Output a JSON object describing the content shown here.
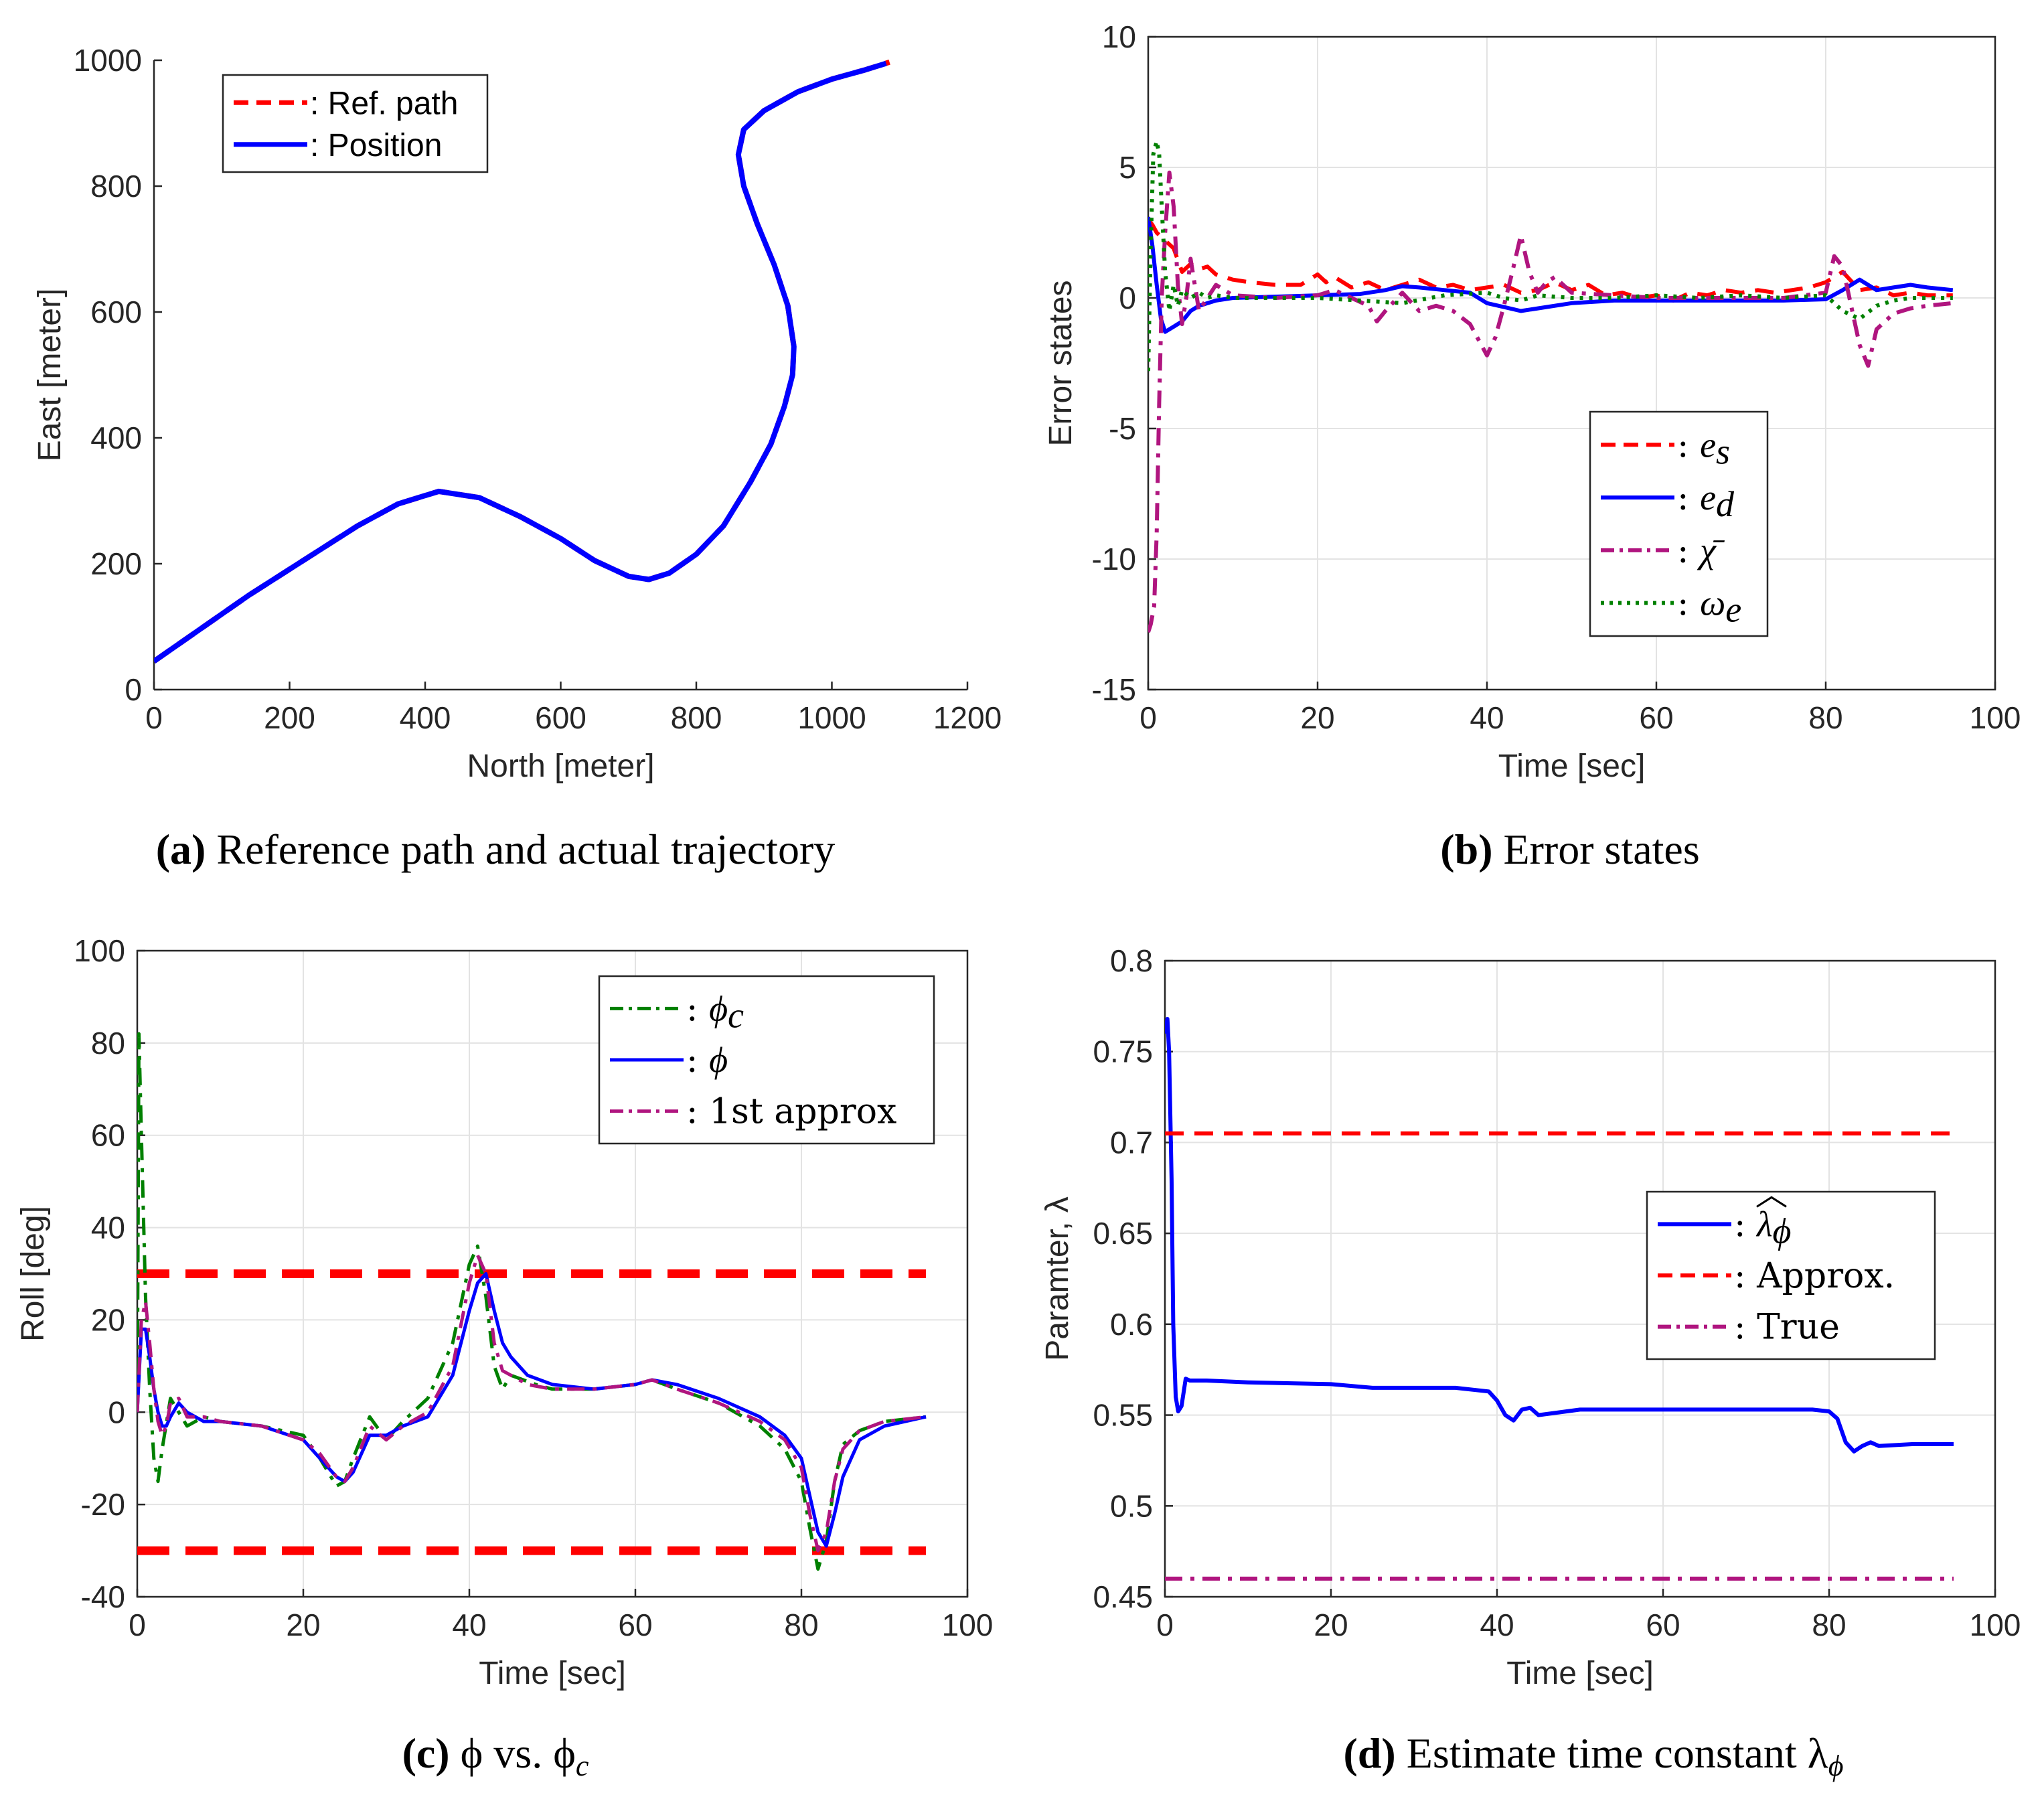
{
  "colors": {
    "red": "#ff0000",
    "blue": "#0000ff",
    "green": "#008000",
    "magenta": "#b0157f"
  },
  "chart_data": [
    {
      "id": "a",
      "type": "line",
      "caption_letter": "(a)",
      "caption_text": "Reference path and actual trajectory",
      "xlabel": "North [meter]",
      "ylabel": "East [meter]",
      "xlim": [
        0,
        1200
      ],
      "ylim": [
        0,
        1000
      ],
      "xticks": [
        0,
        200,
        400,
        600,
        800,
        1000,
        1200
      ],
      "yticks": [
        0,
        200,
        400,
        600,
        800,
        1000
      ],
      "grid": false,
      "legend_position": "top-left",
      "series": [
        {
          "name": ": Ref. path",
          "color": "red",
          "style": "dashed",
          "x": [
            0,
            60,
            140,
            220,
            300,
            360,
            420,
            480,
            540,
            600,
            650,
            700,
            730,
            760,
            800,
            840,
            880,
            910,
            930,
            942,
            944,
            935,
            915,
            890,
            870,
            862,
            870,
            900,
            950,
            1000,
            1050,
            1085
          ],
          "y": [
            45,
            90,
            150,
            205,
            260,
            295,
            315,
            305,
            275,
            240,
            205,
            180,
            175,
            185,
            215,
            260,
            330,
            390,
            450,
            500,
            545,
            610,
            675,
            740,
            800,
            850,
            890,
            920,
            950,
            970,
            985,
            997
          ]
        },
        {
          "name": ": Position",
          "color": "blue",
          "style": "solid",
          "x": [
            0,
            60,
            140,
            220,
            300,
            360,
            420,
            480,
            540,
            600,
            650,
            700,
            730,
            760,
            800,
            840,
            880,
            910,
            930,
            942,
            944,
            935,
            915,
            890,
            870,
            862,
            870,
            900,
            950,
            1000,
            1050,
            1080
          ],
          "y": [
            45,
            90,
            150,
            205,
            260,
            295,
            315,
            305,
            275,
            240,
            205,
            180,
            175,
            185,
            215,
            260,
            330,
            390,
            450,
            500,
            545,
            610,
            675,
            740,
            800,
            850,
            890,
            920,
            950,
            970,
            985,
            995
          ]
        }
      ]
    },
    {
      "id": "b",
      "type": "line",
      "caption_letter": "(b)",
      "caption_text": "Error states",
      "xlabel": "Time [sec]",
      "ylabel": "Error states",
      "xlim": [
        0,
        100
      ],
      "ylim": [
        -15,
        10
      ],
      "xticks": [
        0,
        20,
        40,
        60,
        80,
        100
      ],
      "yticks": [
        -15,
        -10,
        -5,
        0,
        5,
        10
      ],
      "grid": true,
      "legend_position": "bottom-right",
      "series": [
        {
          "name": "e_s",
          "label_base": "e",
          "label_sub": "s",
          "color": "red",
          "style": "dashed",
          "x": [
            0,
            0.5,
            1,
            2,
            3,
            4,
            5,
            6,
            7,
            8,
            10,
            12,
            15,
            18,
            20,
            21,
            22,
            24,
            26,
            28,
            30,
            32,
            34,
            36,
            38,
            40,
            42,
            44,
            46,
            48,
            50,
            52,
            54,
            56,
            58,
            60,
            62,
            64,
            66,
            68,
            70,
            72,
            74,
            76,
            78,
            80,
            82,
            84,
            86,
            88,
            90,
            92,
            95
          ],
          "y": [
            3.0,
            2.8,
            2.5,
            2.2,
            1.9,
            1.0,
            1.3,
            1.1,
            1.2,
            0.9,
            0.7,
            0.6,
            0.5,
            0.5,
            0.9,
            0.6,
            0.8,
            0.4,
            0.6,
            0.3,
            0.5,
            0.7,
            0.4,
            0.5,
            0.3,
            0.4,
            0.5,
            0.2,
            0.3,
            0.6,
            0.3,
            0.5,
            0.1,
            0.2,
            0.0,
            0.1,
            -0.1,
            0.2,
            0.1,
            0.3,
            0.2,
            0.3,
            0.2,
            0.3,
            0.4,
            0.6,
            1.0,
            0.3,
            0.4,
            0.1,
            0.2,
            0.1,
            0.1
          ]
        },
        {
          "name": "e_d",
          "label_base": "e",
          "label_sub": "d",
          "color": "blue",
          "style": "solid",
          "x": [
            0,
            0.5,
            1,
            1.5,
            2,
            3,
            4,
            5,
            6,
            8,
            10,
            15,
            20,
            25,
            28,
            30,
            32,
            35,
            38,
            40,
            42,
            44,
            46,
            50,
            55,
            60,
            65,
            70,
            75,
            80,
            82,
            84,
            86,
            88,
            90,
            92,
            95
          ],
          "y": [
            3.1,
            2.0,
            0.5,
            -0.8,
            -1.3,
            -1.1,
            -0.9,
            -0.5,
            -0.3,
            -0.1,
            0.0,
            0.05,
            0.1,
            0.15,
            0.3,
            0.45,
            0.4,
            0.3,
            0.2,
            -0.2,
            -0.35,
            -0.5,
            -0.4,
            -0.2,
            -0.1,
            -0.1,
            -0.1,
            -0.1,
            -0.1,
            -0.05,
            0.3,
            0.7,
            0.3,
            0.4,
            0.5,
            0.4,
            0.3
          ]
        },
        {
          "name": "chi_bar",
          "label_base": "χ̄",
          "label_sub": "",
          "color": "magenta",
          "style": "dashdot",
          "x": [
            0,
            0.3,
            0.7,
            1,
            1.3,
            1.6,
            2,
            2.5,
            3,
            3.5,
            4,
            4.5,
            5,
            5.5,
            6,
            7,
            8,
            10,
            15,
            20,
            22,
            24,
            26,
            27,
            28,
            30,
            32,
            34,
            36,
            38,
            40,
            41,
            42,
            43,
            44,
            45,
            46,
            47,
            48,
            50,
            55,
            60,
            65,
            70,
            75,
            80,
            81,
            82,
            83,
            84,
            85,
            86,
            88,
            90,
            92,
            95
          ],
          "y": [
            -12.8,
            -12.5,
            -11.8,
            -9.0,
            -4.0,
            0.0,
            2.5,
            4.8,
            3.5,
            0.5,
            -1.0,
            0.0,
            1.5,
            0.5,
            -0.5,
            0.0,
            0.5,
            0.1,
            0.0,
            0.1,
            0.3,
            0.0,
            -0.3,
            -0.9,
            -0.5,
            0.2,
            -0.5,
            -0.3,
            -0.5,
            -1.0,
            -2.2,
            -1.5,
            -0.3,
            1.0,
            2.4,
            1.0,
            0.2,
            0.6,
            0.8,
            0.2,
            0.1,
            0.0,
            0.0,
            0.0,
            0.0,
            0.2,
            1.6,
            1.2,
            -0.3,
            -1.8,
            -2.6,
            -1.2,
            -0.6,
            -0.4,
            -0.3,
            -0.2
          ]
        },
        {
          "name": "omega_e",
          "label_base": "ω",
          "label_sub": "e",
          "color": "green",
          "style": "dotted",
          "x": [
            0,
            0.3,
            0.6,
            1,
            1.3,
            1.6,
            2,
            2.5,
            3,
            3.5,
            4,
            5,
            6,
            7,
            8,
            10,
            15,
            20,
            25,
            30,
            35,
            40,
            42,
            44,
            46,
            50,
            55,
            60,
            65,
            70,
            75,
            80,
            82,
            84,
            86,
            88,
            90,
            92,
            95
          ],
          "y": [
            -2.8,
            2.0,
            5.5,
            6.0,
            5.5,
            3.5,
            1.0,
            -0.5,
            0.5,
            -0.3,
            0.3,
            0.0,
            0.2,
            0.0,
            0.1,
            0.0,
            0.0,
            0.0,
            -0.1,
            -0.2,
            0.1,
            0.2,
            0.0,
            -0.1,
            0.1,
            0.0,
            0.0,
            0.1,
            0.0,
            0.1,
            0.0,
            0.1,
            -0.5,
            -0.8,
            -0.3,
            -0.1,
            0.0,
            0.0,
            0.0
          ]
        }
      ]
    },
    {
      "id": "c",
      "type": "line",
      "caption_letter": "(c)",
      "caption_text": "ϕ vs. ϕ",
      "caption_sub": "c",
      "xlabel": "Time [sec]",
      "ylabel": "Roll [deg]",
      "xlim": [
        0,
        100
      ],
      "ylim": [
        -40,
        100
      ],
      "xticks": [
        0,
        20,
        40,
        60,
        80,
        100
      ],
      "yticks": [
        -40,
        -20,
        0,
        20,
        40,
        60,
        80,
        100
      ],
      "grid": true,
      "legend_position": "top-right",
      "hlines": [
        {
          "y": 30,
          "x": [
            0,
            95
          ],
          "color": "red",
          "style": "thickdash"
        },
        {
          "y": -30,
          "x": [
            0,
            95
          ],
          "color": "red",
          "style": "thickdash"
        }
      ],
      "series": [
        {
          "name": "phi_c",
          "label_base": "ϕ",
          "label_sub": "c",
          "color": "green",
          "style": "dashdot",
          "x": [
            0,
            0.2,
            0.5,
            1,
            1.5,
            2,
            2.5,
            3,
            4,
            5,
            6,
            8,
            10,
            15,
            20,
            22,
            24,
            25,
            26,
            28,
            30,
            32,
            35,
            38,
            40,
            41,
            42,
            43,
            44,
            45,
            48,
            50,
            55,
            60,
            62,
            65,
            70,
            75,
            78,
            80,
            81,
            82,
            83,
            84,
            85,
            87,
            90,
            95
          ],
          "y": [
            0,
            82,
            60,
            25,
            5,
            -10,
            -15,
            -8,
            3,
            0,
            -3,
            -1,
            -2,
            -3,
            -5,
            -10,
            -16,
            -15,
            -10,
            -1,
            -6,
            -2,
            3,
            15,
            32,
            36,
            25,
            10,
            5,
            8,
            6,
            5,
            5,
            6,
            7,
            5,
            2,
            -3,
            -8,
            -15,
            -25,
            -34,
            -28,
            -15,
            -7,
            -4,
            -2,
            -1
          ]
        },
        {
          "name": "phi",
          "label_base": "ϕ",
          "label_sub": "",
          "color": "blue",
          "style": "solid",
          "x": [
            0,
            0.5,
            1,
            1.5,
            2,
            2.5,
            3,
            3.5,
            4,
            5,
            6,
            8,
            10,
            15,
            20,
            22,
            24,
            25,
            26,
            28,
            30,
            32,
            35,
            38,
            40,
            41,
            42,
            43,
            44,
            45,
            47,
            50,
            55,
            60,
            62,
            65,
            70,
            75,
            78,
            80,
            81,
            82,
            83,
            84,
            85,
            87,
            90,
            95
          ],
          "y": [
            0,
            18,
            18,
            12,
            5,
            0,
            -3,
            -3,
            -1,
            2,
            0,
            -2,
            -2,
            -3,
            -6,
            -10,
            -14,
            -15,
            -13,
            -5,
            -5,
            -3,
            -1,
            8,
            22,
            28,
            30,
            22,
            15,
            12,
            8,
            6,
            5,
            6,
            7,
            6,
            3,
            -1,
            -5,
            -10,
            -18,
            -26,
            -29,
            -22,
            -14,
            -6,
            -3,
            -1
          ]
        },
        {
          "name": "1st_approx",
          "label_base": "1st approx",
          "label_sub": "",
          "color": "magenta",
          "style": "dashdot",
          "x": [
            0,
            0.5,
            1,
            1.5,
            2,
            2.5,
            3,
            3.5,
            4,
            5,
            6,
            8,
            10,
            15,
            20,
            22,
            24,
            25,
            26,
            28,
            30,
            32,
            35,
            38,
            40,
            41,
            42,
            43,
            44,
            45,
            47,
            50,
            55,
            60,
            62,
            65,
            70,
            75,
            78,
            80,
            81,
            82,
            83,
            84,
            85,
            87,
            90,
            95
          ],
          "y": [
            0,
            20,
            24,
            15,
            5,
            -2,
            -5,
            -3,
            2,
            3,
            -1,
            -1,
            -2,
            -3,
            -6,
            -9,
            -14,
            -15,
            -12,
            -3,
            -6,
            -3,
            0,
            10,
            28,
            34,
            30,
            15,
            9,
            8,
            6,
            5,
            5,
            6,
            7,
            5,
            2,
            -2,
            -6,
            -12,
            -22,
            -30,
            -26,
            -15,
            -8,
            -4,
            -2,
            -1
          ]
        }
      ]
    },
    {
      "id": "d",
      "type": "line",
      "caption_letter": "(d)",
      "caption_text": "Estimate time constant λ",
      "caption_sub": "ϕ",
      "xlabel": "Time [sec]",
      "ylabel": "Paramter, λ",
      "xlim": [
        0,
        100
      ],
      "ylim": [
        0.45,
        0.8
      ],
      "xticks": [
        0,
        20,
        40,
        60,
        80,
        100
      ],
      "yticks": [
        0.45,
        0.5,
        0.55,
        0.6,
        0.65,
        0.7,
        0.75,
        0.8
      ],
      "grid": true,
      "legend_position": "middle-right",
      "series": [
        {
          "name": "lambda_hat_phi",
          "label_base": "λ",
          "label_sub": "ϕ",
          "label_hat": true,
          "color": "blue",
          "style": "solid",
          "x": [
            0,
            0.3,
            0.5,
            0.8,
            1,
            1.3,
            1.6,
            2,
            2.5,
            3,
            5,
            10,
            20,
            25,
            30,
            35,
            39,
            40,
            41,
            42,
            43,
            44,
            45,
            50,
            60,
            70,
            78,
            80,
            81,
            82,
            83,
            84,
            85,
            86,
            90,
            95
          ],
          "y": [
            0.76,
            0.768,
            0.75,
            0.68,
            0.6,
            0.56,
            0.552,
            0.555,
            0.57,
            0.569,
            0.569,
            0.568,
            0.567,
            0.565,
            0.565,
            0.565,
            0.563,
            0.558,
            0.55,
            0.547,
            0.553,
            0.554,
            0.55,
            0.553,
            0.553,
            0.553,
            0.553,
            0.552,
            0.548,
            0.535,
            0.53,
            0.533,
            0.535,
            0.533,
            0.534,
            0.534
          ]
        },
        {
          "name": "approx",
          "label_base": "Approx.",
          "label_sub": "",
          "color": "red",
          "style": "dashed",
          "x": [
            0,
            95
          ],
          "y": [
            0.705,
            0.705
          ]
        },
        {
          "name": "true",
          "label_base": "True",
          "label_sub": "",
          "color": "magenta",
          "style": "dashdot",
          "x": [
            0,
            95
          ],
          "y": [
            0.46,
            0.46
          ]
        }
      ]
    }
  ]
}
